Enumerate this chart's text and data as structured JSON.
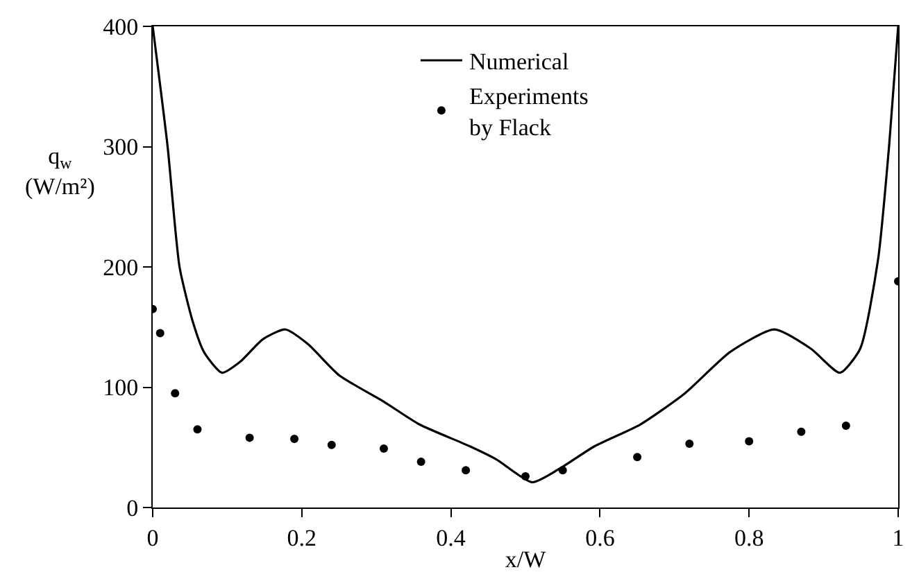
{
  "chart_data": {
    "type": "line",
    "xlabel": "x/W",
    "ylabel": "q$_{w}$ (W/m²)",
    "xlim": [
      0,
      1
    ],
    "ylim": [
      0,
      400
    ],
    "xticks": [
      0,
      0.2,
      0.4,
      0.6,
      0.8,
      1
    ],
    "yticks": [
      0,
      100,
      200,
      300,
      400
    ],
    "legend": "top",
    "line_style": "solid",
    "series": [
      {
        "name": "Numerical",
        "color": "#000000",
        "x": [
          0,
          0.02,
          0.036,
          0.054,
          0.069,
          0.093,
          0.117,
          0.148,
          0.178,
          0.208,
          0.25,
          0.31,
          0.358,
          0.425,
          0.461,
          0.509,
          0.545,
          0.593,
          0.654,
          0.714,
          0.774,
          0.834,
          0.883,
          0.922,
          0.949,
          0.973,
          0.988,
          1.0
        ],
        "values": [
          400,
          300,
          200,
          154,
          129,
          112,
          121,
          140,
          148,
          136,
          110,
          88,
          69,
          51,
          40,
          21,
          32,
          51,
          69,
          95,
          129,
          148,
          132,
          112,
          132,
          206,
          302,
          400
        ]
      },
      {
        "name": "Experiments by Flack",
        "type": "scatter",
        "marker": "circle",
        "color": "#000000",
        "x": [
          0,
          0.01,
          0.03,
          0.06,
          0.13,
          0.19,
          0.24,
          0.31,
          0.36,
          0.42,
          0.5,
          0.55,
          0.65,
          0.72,
          0.8,
          0.87,
          0.93,
          1.0
        ],
        "values": [
          165,
          145,
          95,
          65,
          58,
          57,
          52,
          49,
          38,
          31,
          26,
          31,
          42,
          53,
          55,
          63,
          68,
          188
        ]
      }
    ]
  }
}
